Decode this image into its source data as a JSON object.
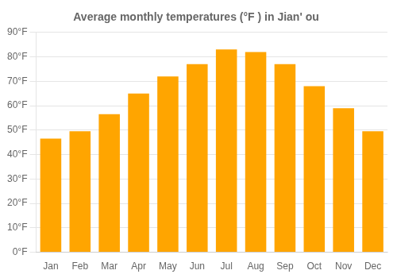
{
  "chart_data": {
    "type": "bar",
    "title": "Average monthly temperatures (°F ) in Jian' ou",
    "categories": [
      "Jan",
      "Feb",
      "Mar",
      "Apr",
      "May",
      "Jun",
      "Jul",
      "Aug",
      "Sep",
      "Oct",
      "Nov",
      "Dec"
    ],
    "values": [
      46.5,
      49.5,
      56.5,
      65,
      72,
      77,
      83,
      82,
      77,
      68,
      59,
      49.5
    ],
    "color": "#FFA500",
    "ylim": [
      0,
      90
    ],
    "yticks": [
      {
        "value": 0,
        "label": "0°F"
      },
      {
        "value": 10,
        "label": "10°F"
      },
      {
        "value": 20,
        "label": "20°F"
      },
      {
        "value": 30,
        "label": "30°F"
      },
      {
        "value": 40,
        "label": "40°F"
      },
      {
        "value": 50,
        "label": "50°F"
      },
      {
        "value": 60,
        "label": "60°F"
      },
      {
        "value": 70,
        "label": "70°F"
      },
      {
        "value": 80,
        "label": "80°F"
      },
      {
        "value": 90,
        "label": "90°F"
      }
    ],
    "grid": true
  }
}
